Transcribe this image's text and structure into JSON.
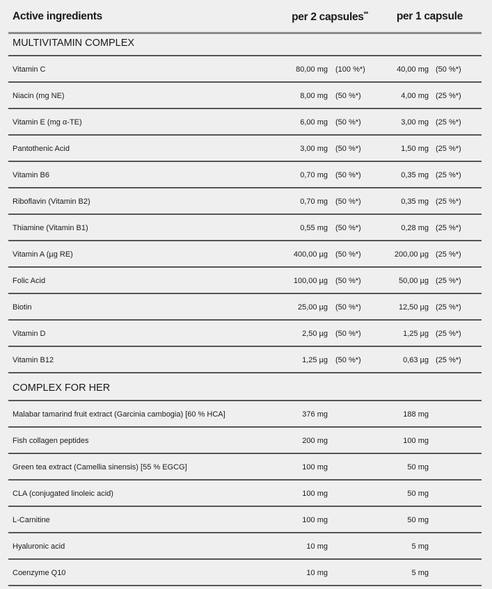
{
  "header": {
    "col_name": "Active ingredients",
    "col_per2": "per 2 capsules",
    "col_per2_mark": "**",
    "col_per1": "per 1 capsule"
  },
  "sections": [
    {
      "title": "MULTIVITAMIN COMPLEX",
      "rows": [
        {
          "name": "Vitamin C",
          "per2": "80,00 mg",
          "per2_pct": "(100 %*)",
          "per1": "40,00 mg",
          "per1_pct": "(50 %*)"
        },
        {
          "name": "Niacin (mg NE)",
          "per2": "8,00 mg",
          "per2_pct": "(50 %*)",
          "per1": "4,00 mg",
          "per1_pct": "(25 %*)"
        },
        {
          "name": "Vitamin E (mg α-TE)",
          "per2": "6,00 mg",
          "per2_pct": "(50 %*)",
          "per1": "3,00 mg",
          "per1_pct": "(25 %*)"
        },
        {
          "name": "Pantothenic Acid",
          "per2": "3,00 mg",
          "per2_pct": "(50 %*)",
          "per1": "1,50 mg",
          "per1_pct": "(25 %*)"
        },
        {
          "name": "Vitamin B6",
          "per2": "0,70 mg",
          "per2_pct": "(50 %*)",
          "per1": "0,35 mg",
          "per1_pct": "(25 %*)"
        },
        {
          "name": "Riboflavin (Vitamin B2)",
          "per2": "0,70 mg",
          "per2_pct": "(50 %*)",
          "per1": "0,35 mg",
          "per1_pct": "(25 %*)"
        },
        {
          "name": "Thiamine (Vitamin B1)",
          "per2": "0,55 mg",
          "per2_pct": "(50 %*)",
          "per1": "0,28 mg",
          "per1_pct": "(25 %*)"
        },
        {
          "name": "Vitamin A (µg RE)",
          "per2": "400,00 µg",
          "per2_pct": "(50 %*)",
          "per1": "200,00 µg",
          "per1_pct": "(25 %*)"
        },
        {
          "name": "Folic Acid",
          "per2": "100,00 µg",
          "per2_pct": "(50 %*)",
          "per1": "50,00 µg",
          "per1_pct": "(25 %*)"
        },
        {
          "name": "Biotin",
          "per2": "25,00 µg",
          "per2_pct": "(50 %*)",
          "per1": "12,50 µg",
          "per1_pct": "(25 %*)"
        },
        {
          "name": "Vitamin D",
          "per2": "2,50 µg",
          "per2_pct": "(50 %*)",
          "per1": "1,25 µg",
          "per1_pct": "(25 %*)"
        },
        {
          "name": "Vitamin B12",
          "per2": "1,25 µg",
          "per2_pct": "(50 %*)",
          "per1": "0,63 µg",
          "per1_pct": "(25 %*)"
        }
      ]
    },
    {
      "title": "COMPLEX FOR HER",
      "rows": [
        {
          "name": "Malabar tamarind fruit extract (Garcinia cambogia) [60 % HCA]",
          "per2": "376 mg",
          "per1": "188 mg"
        },
        {
          "name": "Fish collagen peptides",
          "per2": "200 mg",
          "per1": "100 mg"
        },
        {
          "name": "Green tea extract (Camellia sinensis) [55 % EGCG]",
          "per2": "100 mg",
          "per1": "50 mg"
        },
        {
          "name": "CLA (conjugated linoleic acid)",
          "per2": "100 mg",
          "per1": "50 mg"
        },
        {
          "name": "L-Carnitine",
          "per2": "100 mg",
          "per1": "50 mg"
        },
        {
          "name": "Hyaluronic acid",
          "per2": "10 mg",
          "per1": "5 mg"
        },
        {
          "name": "Coenzyme Q10",
          "per2": "10 mg",
          "per1": "5 mg"
        }
      ]
    }
  ]
}
